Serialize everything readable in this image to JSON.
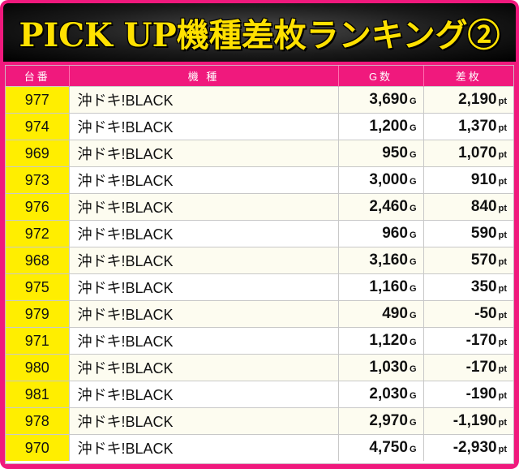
{
  "title": "PICK UP機種差枚ランキング②",
  "colors": {
    "frame": "#f0197d",
    "title_text": "#ffe100",
    "title_bg": "#1a1a1a",
    "number_cell": "#ffee00"
  },
  "table": {
    "headers": {
      "no": "台番",
      "model": "機 種",
      "games": "G数",
      "diff": "差枚"
    },
    "units": {
      "games": "G",
      "diff": "pt"
    },
    "rows": [
      {
        "no": "977",
        "model": "沖ドキ!BLACK",
        "games": "3,690",
        "diff": "2,190"
      },
      {
        "no": "974",
        "model": "沖ドキ!BLACK",
        "games": "1,200",
        "diff": "1,370"
      },
      {
        "no": "969",
        "model": "沖ドキ!BLACK",
        "games": "950",
        "diff": "1,070"
      },
      {
        "no": "973",
        "model": "沖ドキ!BLACK",
        "games": "3,000",
        "diff": "910"
      },
      {
        "no": "976",
        "model": "沖ドキ!BLACK",
        "games": "2,460",
        "diff": "840"
      },
      {
        "no": "972",
        "model": "沖ドキ!BLACK",
        "games": "960",
        "diff": "590"
      },
      {
        "no": "968",
        "model": "沖ドキ!BLACK",
        "games": "3,160",
        "diff": "570"
      },
      {
        "no": "975",
        "model": "沖ドキ!BLACK",
        "games": "1,160",
        "diff": "350"
      },
      {
        "no": "979",
        "model": "沖ドキ!BLACK",
        "games": "490",
        "diff": "-50"
      },
      {
        "no": "971",
        "model": "沖ドキ!BLACK",
        "games": "1,120",
        "diff": "-170"
      },
      {
        "no": "980",
        "model": "沖ドキ!BLACK",
        "games": "1,030",
        "diff": "-170"
      },
      {
        "no": "981",
        "model": "沖ドキ!BLACK",
        "games": "2,030",
        "diff": "-190"
      },
      {
        "no": "978",
        "model": "沖ドキ!BLACK",
        "games": "2,970",
        "diff": "-1,190"
      },
      {
        "no": "970",
        "model": "沖ドキ!BLACK",
        "games": "4,750",
        "diff": "-2,930"
      }
    ]
  }
}
